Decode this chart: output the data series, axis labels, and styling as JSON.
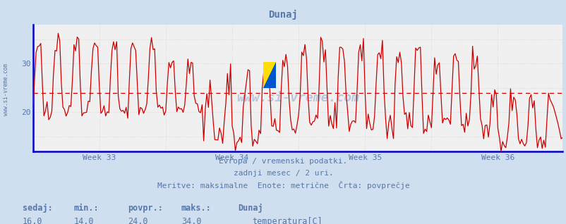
{
  "title": "Dunaj",
  "bg_color": "#d0dff0",
  "plot_bg_color": "#f0f0f0",
  "line_color": "#cc0000",
  "avg_line_color": "#cc0000",
  "grid_color": "#cccccc",
  "grid_minor_color": "#e0d0d0",
  "axis_color": "#0000cc",
  "text_color": "#5577aa",
  "ylim": [
    12,
    38
  ],
  "yticks": [
    20,
    30
  ],
  "avg_value": 24.0,
  "min_value": 14.0,
  "max_value": 34.0,
  "current_value": 16.0,
  "week_labels": [
    "Week 33",
    "Week 34",
    "Week 35",
    "Week 36"
  ],
  "footer_line1": "Evropa / vremenski podatki.",
  "footer_line2": "zadnji mesec / 2 uri.",
  "footer_line3": "Meritve: maksimalne  Enote: metrične  Črta: povprečje",
  "stat_labels": [
    "sedaj:",
    "min.:",
    "povpr.:",
    "maks.:"
  ],
  "stat_values": [
    "16,0",
    "14,0",
    "24,0",
    "34,0"
  ],
  "legend_label": "Dunaj",
  "legend_sublabel": "temperatura[C]",
  "legend_color": "#cc0000",
  "n_points": 336,
  "watermark": "www.si-vreme.com"
}
